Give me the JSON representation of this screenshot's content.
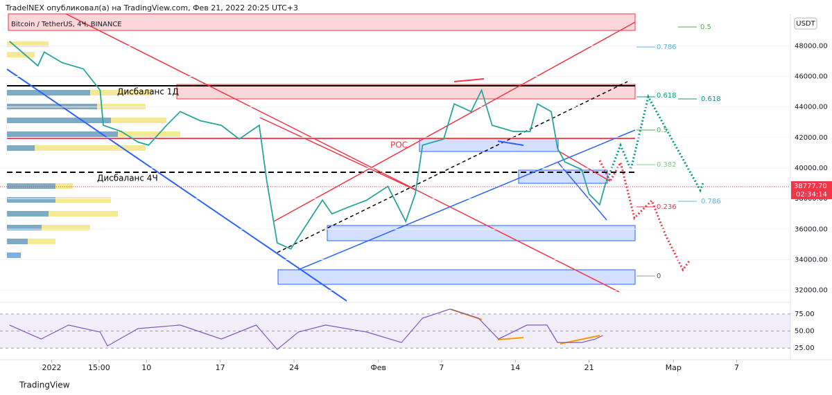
{
  "header": {
    "publisher": "TradelNEX опубликовал(а) на TradingView.com, Фев 21, 2022 20:25 UTC+3",
    "currency": "USDT",
    "brand": "TradingView"
  },
  "chart_data": [
    {
      "type": "line",
      "title": "Bitcoin / TetherUS, 4Ч, BINANCE",
      "color": "#26a69a",
      "x": [
        -3.0,
        -0.3,
        0.3,
        2.0,
        4.0,
        5.6,
        5.9,
        7.6,
        9.2,
        10.2,
        11.9,
        13.2,
        15.1,
        17.1,
        18.8,
        20.7,
        21.4,
        22.4,
        23.7,
        25.0,
        26.7,
        27.6,
        29.0,
        30.9,
        32.9,
        34.6,
        35.5,
        36.2,
        38.2,
        39.2,
        40.8,
        41.8,
        42.8,
        44.8,
        46.4,
        47.1,
        48.4,
        49.0,
        49.7,
        51.3,
        52.0,
        53.0,
        53.6
      ],
      "values": [
        48300,
        46700,
        47600,
        46900,
        46500,
        45100,
        42800,
        42400,
        41700,
        41500,
        42800,
        43700,
        43100,
        42800,
        41900,
        42800,
        39200,
        35100,
        34700,
        36100,
        37900,
        37000,
        37400,
        37900,
        38800,
        36500,
        38300,
        41500,
        41900,
        44200,
        43700,
        45100,
        42800,
        42400,
        42400,
        44200,
        43700,
        41300,
        40400,
        39900,
        38300,
        37600,
        39100
      ],
      "xlim": [
        -3.9,
        71.1
      ],
      "xticks": [
        {
          "value": 1,
          "label": "2022"
        },
        {
          "value": 5.5,
          "label": "15:00"
        },
        {
          "value": 10,
          "label": "10"
        },
        {
          "value": 17,
          "label": "17"
        },
        {
          "value": 24,
          "label": "24"
        },
        {
          "value": 32,
          "label": "Фев"
        },
        {
          "value": 38,
          "label": "7"
        },
        {
          "value": 45,
          "label": "14"
        },
        {
          "value": 52,
          "label": "21"
        },
        {
          "value": 60,
          "label": "Мар"
        },
        {
          "value": 66,
          "label": "7"
        }
      ],
      "ylim": [
        31300,
        50100
      ],
      "yticks": [
        {
          "value": 32000,
          "label": "32000.00"
        },
        {
          "value": 34000,
          "label": "34000.00"
        },
        {
          "value": 36000,
          "label": "36000.00"
        },
        {
          "value": 38000,
          "label": "38000.00"
        },
        {
          "value": 40000,
          "label": "40000.00"
        },
        {
          "value": 42000,
          "label": "42000.00"
        },
        {
          "value": 44000,
          "label": "44000.00"
        },
        {
          "value": 46000,
          "label": "46000.00"
        },
        {
          "value": 48000,
          "label": "48000.00"
        }
      ],
      "last_price": {
        "value": 38777.7,
        "label": "38777.70"
      },
      "countdown": "02:34:14",
      "annotations": [
        "Дисбаланс 1Д",
        "Дисбаланс 4Ч",
        "POC"
      ],
      "fib_labels": [
        "0.5",
        "0.786",
        "0.618",
        "0.618",
        "0.5",
        "0.382",
        "0.786",
        "0.236",
        "0"
      ]
    },
    {
      "type": "line",
      "color": "#7e57c2",
      "x": [
        -3.0,
        0.0,
        2.6,
        5.6,
        6.3,
        9.2,
        13.2,
        17.1,
        20.4,
        22.4,
        24.4,
        27.0,
        30.9,
        34.2,
        36.2,
        38.8,
        41.5,
        43.4,
        46.1,
        48.0,
        49.0,
        51.3,
        52.6,
        53.3
      ],
      "values": [
        58.7,
        38.3,
        58.7,
        48.5,
        28.1,
        53.6,
        58.7,
        38.3,
        58.7,
        23.0,
        48.5,
        58.7,
        48.5,
        33.2,
        68.9,
        82.1,
        68.9,
        38.3,
        58.7,
        58.7,
        33.2,
        33.2,
        38.3,
        43.4
      ],
      "ylim": [
        8,
        89
      ],
      "yticks": [
        {
          "value": 25,
          "label": "25.00"
        },
        {
          "value": 50,
          "label": "50.00"
        },
        {
          "value": 75,
          "label": "75.00"
        }
      ]
    }
  ]
}
